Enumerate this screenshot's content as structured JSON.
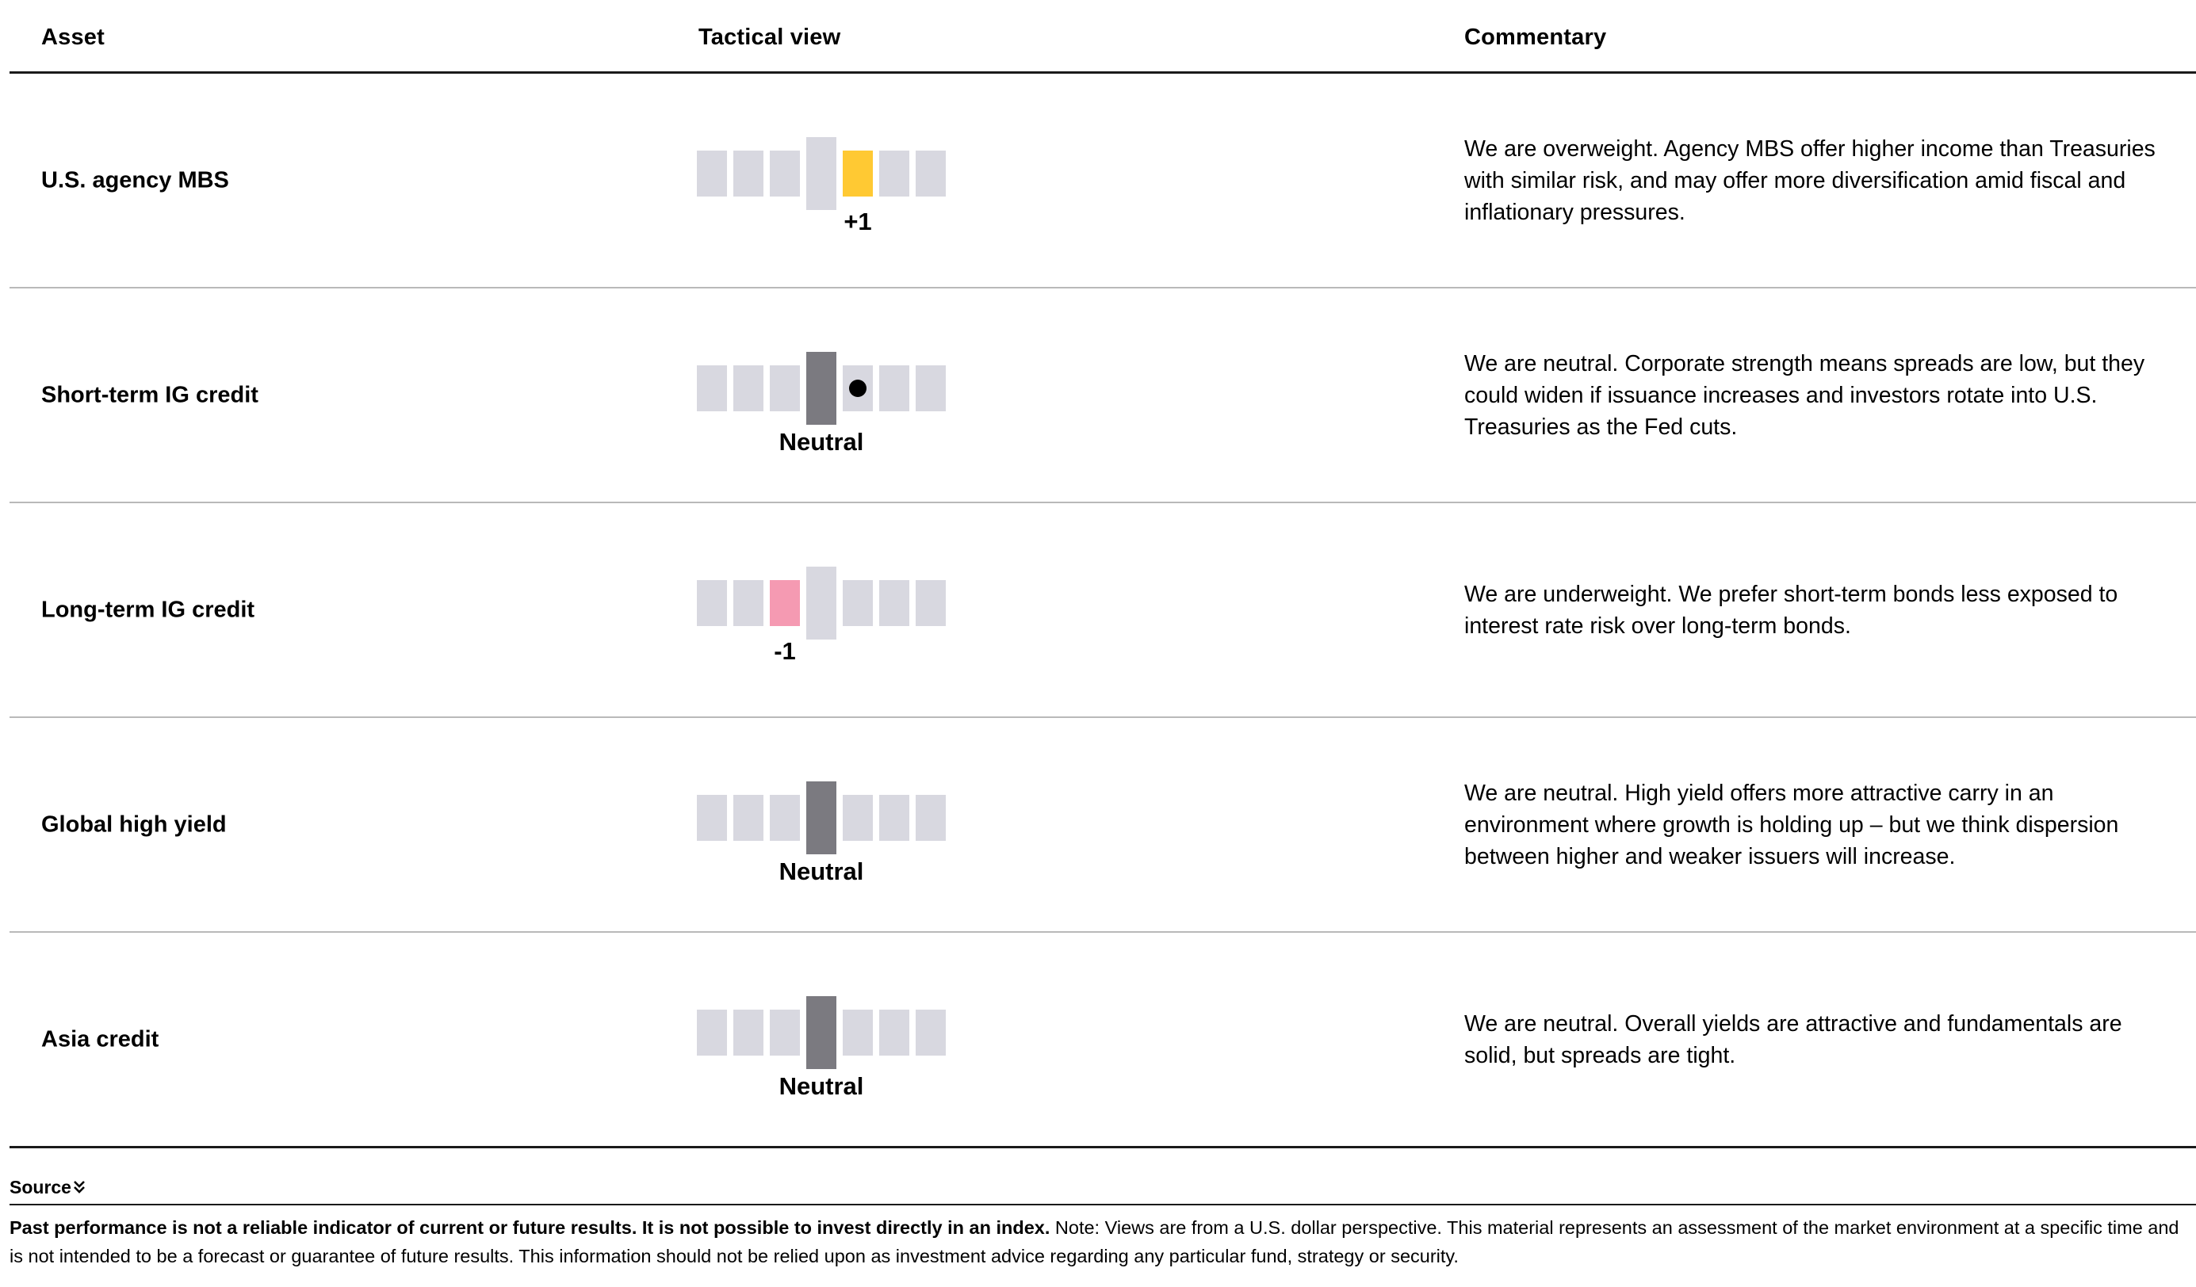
{
  "header": {
    "asset": "Asset",
    "view": "Tactical view",
    "commentary": "Commentary"
  },
  "colors": {
    "segment": "#d8d8e0",
    "neutral_center": "#7b7a80",
    "overweight": "#ffc933",
    "underweight": "#f59ab2",
    "dot": "#000000"
  },
  "scale_positions": [
    -3,
    -2,
    -1,
    0,
    1,
    2,
    3
  ],
  "rows": [
    {
      "asset": "U.S. agency MBS",
      "view": 1,
      "view_label": "+1",
      "dot": false,
      "commentary": "We are overweight. Agency MBS offer higher income than Treasuries with similar risk, and may offer more diversification amid fiscal and inflationary pressures."
    },
    {
      "asset": "Short-term IG credit",
      "view": 0,
      "view_label": "Neutral",
      "dot": true,
      "dot_position": 1,
      "commentary": "We are neutral. Corporate strength means spreads are low, but they could widen if issuance increases and investors rotate into U.S. Treasuries as the Fed cuts."
    },
    {
      "asset": "Long-term IG credit",
      "view": -1,
      "view_label": "-1",
      "dot": false,
      "commentary": "We are underweight. We prefer short-term bonds less exposed to interest rate risk over long-term bonds."
    },
    {
      "asset": "Global high yield",
      "view": 0,
      "view_label": "Neutral",
      "dot": false,
      "commentary": "We are neutral. High yield offers more attractive carry in an environment where growth is holding up – but we think dispersion between higher and weaker issuers will increase."
    },
    {
      "asset": "Asia credit",
      "view": 0,
      "view_label": "Neutral",
      "dot": false,
      "commentary": "We are neutral. Overall yields are attractive and fundamentals are solid, but spreads are tight."
    }
  ],
  "source": {
    "label": "Source",
    "icon": "double-chevron-down-icon"
  },
  "footnote": {
    "bold": "Past performance is not a reliable indicator of current or future results. It is not possible to invest directly in an index.",
    "text": " Note: Views are from a U.S. dollar perspective. This material represents an assessment of the market environment at a specific time and is not intended to be a forecast or guarantee of future results. This information should not be relied upon as investment advice regarding any particular fund, strategy or security."
  }
}
